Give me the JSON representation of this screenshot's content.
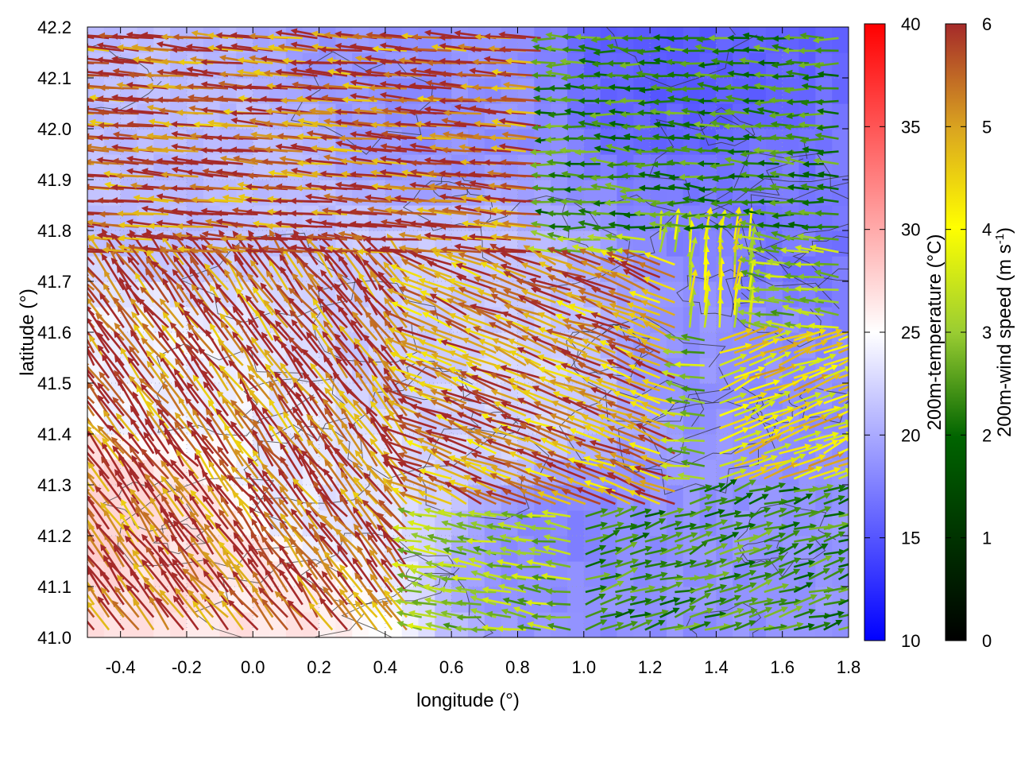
{
  "chart_data": {
    "type": "heatmap",
    "subtype": "vector-field-over-temperature-map",
    "xlabel": "longitude (°)",
    "ylabel": "latitude (°)",
    "xlim": [
      -0.5,
      1.8
    ],
    "ylim": [
      41.0,
      42.2
    ],
    "x_ticks": [
      "-0.4",
      "-0.2",
      "0.0",
      "0.2",
      "0.4",
      "0.6",
      "0.8",
      "1.0",
      "1.2",
      "1.4",
      "1.6",
      "1.8"
    ],
    "y_ticks": [
      "41.0",
      "41.1",
      "41.2",
      "41.3",
      "41.4",
      "41.5",
      "41.6",
      "41.7",
      "41.8",
      "41.9",
      "42.0",
      "42.1",
      "42.2"
    ],
    "grid": true,
    "temperature_colorbar": {
      "label": "200m-temperature (°C)",
      "range": [
        10,
        40
      ],
      "ticks": [
        "10",
        "15",
        "20",
        "25",
        "30",
        "35",
        "40"
      ],
      "colors": [
        "#0000ff",
        "#ffffff",
        "#ff0000"
      ]
    },
    "wind_colorbar": {
      "label_main": "200m-wind speed (m s",
      "label_sup": "-1",
      "label_end": ")",
      "range": [
        0,
        6
      ],
      "ticks": [
        "0",
        "1",
        "2",
        "3",
        "4",
        "5",
        "6"
      ],
      "colors": [
        "#000000",
        "#006400",
        "#9acd32",
        "#ffff00",
        "#daa520",
        "#a52a2a"
      ]
    },
    "temperature_regions": [
      {
        "lon": -0.45,
        "lat": 41.25,
        "temp": 27.5
      },
      {
        "lon": -0.2,
        "lat": 41.15,
        "temp": 27
      },
      {
        "lon": 0.0,
        "lat": 41.05,
        "temp": 26.5
      },
      {
        "lon": -0.3,
        "lat": 41.5,
        "temp": 24
      },
      {
        "lon": 0.2,
        "lat": 41.3,
        "temp": 23.5
      },
      {
        "lon": -0.2,
        "lat": 41.9,
        "temp": 21
      },
      {
        "lon": 0.5,
        "lat": 41.6,
        "temp": 22
      },
      {
        "lon": 0.75,
        "lat": 41.45,
        "temp": 22.5
      },
      {
        "lon": 0.95,
        "lat": 41.2,
        "temp": 18
      },
      {
        "lon": 1.3,
        "lat": 41.1,
        "temp": 18.5
      },
      {
        "lon": 1.5,
        "lat": 41.5,
        "temp": 18.5
      },
      {
        "lon": 1.3,
        "lat": 42.15,
        "temp": 15.5
      },
      {
        "lon": 0.6,
        "lat": 42.1,
        "temp": 18.5
      },
      {
        "lon": 1.7,
        "lat": 41.8,
        "temp": 17
      }
    ],
    "wind_regimes": [
      {
        "lon_range": [
          -0.5,
          0.9
        ],
        "lat_range": [
          41.75,
          42.2
        ],
        "u": -5.8,
        "v": 0.5,
        "speed": 6
      },
      {
        "lon_range": [
          -0.5,
          0.5
        ],
        "lat_range": [
          41.0,
          41.75
        ],
        "u": -3.5,
        "v": 4.6,
        "speed": 6
      },
      {
        "lon_range": [
          0.5,
          1.3
        ],
        "lat_range": [
          41.25,
          41.75
        ],
        "u": -4.6,
        "v": 1.8,
        "speed": 5.5
      },
      {
        "lon_range": [
          0.6,
          1.8
        ],
        "lat_range": [
          41.8,
          42.2
        ],
        "u": -2.5,
        "v": 0.1,
        "speed": 2.5
      },
      {
        "lon_range": [
          1.0,
          1.8
        ],
        "lat_range": [
          41.0,
          41.3
        ],
        "u": 2.2,
        "v": 0.7,
        "speed": 2.5
      },
      {
        "lon_range": [
          1.4,
          1.8
        ],
        "lat_range": [
          41.3,
          41.6
        ],
        "u": 4.0,
        "v": 1.5,
        "speed": 4.5
      },
      {
        "lon_range": [
          1.2,
          1.5
        ],
        "lat_range": [
          41.6,
          41.8
        ],
        "u": 0.5,
        "v": 4.0,
        "speed": 4
      }
    ]
  }
}
